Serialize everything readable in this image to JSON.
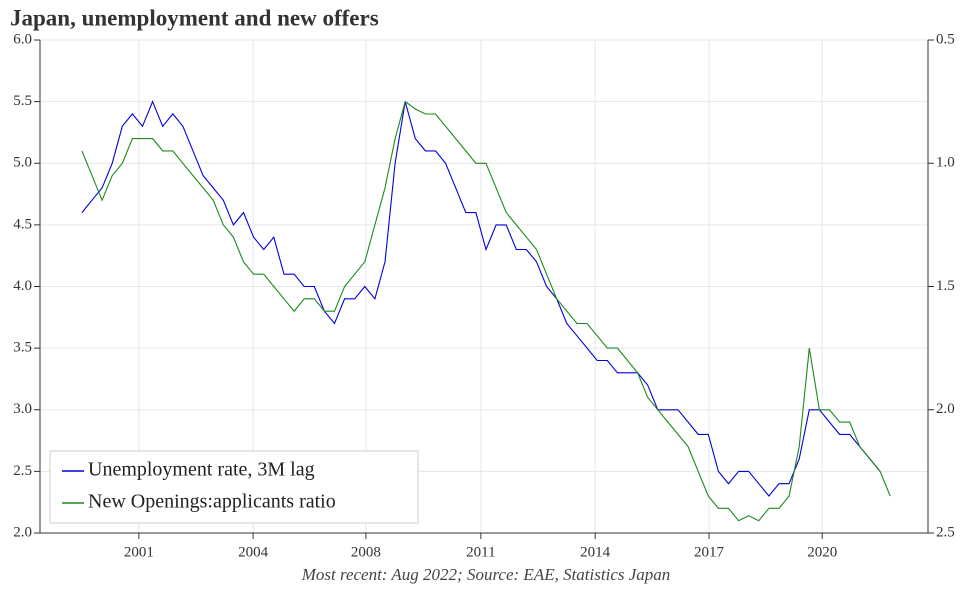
{
  "chart_data": {
    "type": "line",
    "title": "Japan, unemployment and new offers",
    "footnote": "Most recent: Aug 2022; Source: EAE, Statistics Japan",
    "x": [
      2000.6,
      2000.875,
      2001.15,
      2001.425,
      2001.7,
      2001.975,
      2002.25,
      2002.525,
      2002.8,
      2003.075,
      2003.35,
      2003.625,
      2003.9,
      2004.175,
      2004.45,
      2004.725,
      2005,
      2005.275,
      2005.55,
      2005.825,
      2006.1,
      2006.375,
      2006.65,
      2006.925,
      2007.2,
      2007.475,
      2007.75,
      2008.025,
      2008.3,
      2008.575,
      2008.85,
      2009.125,
      2009.4,
      2009.675,
      2009.95,
      2010.225,
      2010.5,
      2010.775,
      2011.05,
      2011.325,
      2011.6,
      2011.875,
      2012.15,
      2012.425,
      2012.7,
      2012.975,
      2013.25,
      2013.525,
      2013.8,
      2014.075,
      2014.35,
      2014.625,
      2014.9,
      2015.175,
      2015.45,
      2015.725,
      2016,
      2016.275,
      2016.55,
      2016.825,
      2017.1,
      2017.375,
      2017.65,
      2017.925,
      2018.2,
      2018.475,
      2018.75,
      2019.025,
      2019.3,
      2019.575,
      2019.85,
      2020.125,
      2020.4,
      2020.675,
      2020.95,
      2021.225,
      2021.5,
      2021.775,
      2022.05,
      2022.325,
      2022.6
    ],
    "series": [
      {
        "name": "Unemployment rate, 3M lag",
        "color": "#0000dd",
        "axis": "y",
        "values": [
          4.6,
          4.7,
          4.8,
          5.0,
          5.3,
          5.4,
          5.3,
          5.5,
          5.3,
          5.4,
          5.3,
          5.1,
          4.9,
          4.8,
          4.7,
          4.5,
          4.6,
          4.4,
          4.3,
          4.4,
          4.1,
          4.1,
          4.0,
          4.0,
          3.8,
          3.7,
          3.9,
          3.9,
          4.0,
          3.9,
          4.2,
          5.0,
          5.5,
          5.2,
          5.1,
          5.1,
          5.0,
          4.8,
          4.6,
          4.6,
          4.3,
          4.5,
          4.5,
          4.3,
          4.3,
          4.2,
          4.0,
          3.9,
          3.7,
          3.6,
          3.5,
          3.4,
          3.4,
          3.3,
          3.3,
          3.3,
          3.2,
          3.0,
          3.0,
          3.0,
          2.9,
          2.8,
          2.8,
          2.5,
          2.4,
          2.5,
          2.5,
          2.4,
          2.3,
          2.4,
          2.4,
          2.6,
          3.0,
          3.0,
          2.9,
          2.8,
          2.8,
          2.7,
          2.6,
          2.5,
          null
        ]
      },
      {
        "name": "New Openings:applicants ratio",
        "color": "#1a8a1a",
        "axis": "y2",
        "values": [
          0.95,
          1.05,
          1.15,
          1.05,
          1.0,
          0.9,
          0.9,
          0.9,
          0.95,
          0.95,
          1.0,
          1.05,
          1.1,
          1.15,
          1.25,
          1.3,
          1.4,
          1.45,
          1.45,
          1.5,
          1.55,
          1.6,
          1.55,
          1.55,
          1.6,
          1.6,
          1.5,
          1.45,
          1.4,
          1.25,
          1.1,
          0.9,
          0.75,
          0.78,
          0.8,
          0.8,
          0.85,
          0.9,
          0.95,
          1.0,
          1.0,
          1.1,
          1.2,
          1.25,
          1.3,
          1.35,
          1.45,
          1.55,
          1.6,
          1.65,
          1.65,
          1.7,
          1.75,
          1.75,
          1.8,
          1.85,
          1.95,
          2.0,
          2.05,
          2.1,
          2.15,
          2.25,
          2.35,
          2.4,
          2.4,
          2.45,
          2.43,
          2.45,
          2.4,
          2.4,
          2.35,
          2.15,
          1.75,
          2.0,
          2.0,
          2.05,
          2.05,
          2.15,
          2.2,
          2.25,
          2.35
        ]
      }
    ],
    "xlim": [
      1999.46,
      2023.63
    ],
    "xticks": [
      {
        "value": 2002.15,
        "label": "2001"
      },
      {
        "value": 2005.26,
        "label": "2004"
      },
      {
        "value": 2008.33,
        "label": "2008"
      },
      {
        "value": 2011.46,
        "label": "2011"
      },
      {
        "value": 2014.57,
        "label": "2014"
      },
      {
        "value": 2017.67,
        "label": "2017"
      },
      {
        "value": 2020.75,
        "label": "2020"
      }
    ],
    "ylim": [
      2,
      6
    ],
    "yticks": [
      {
        "value": 6,
        "label": "6.0"
      },
      5.5,
      {
        "value": 5,
        "label": "5.0"
      },
      4.5,
      {
        "value": 4,
        "label": "4.0"
      },
      3.5,
      {
        "value": 3,
        "label": "3.0"
      },
      2.5,
      {
        "value": 2,
        "label": "2.0"
      }
    ],
    "y2lim": [
      0.5,
      2.5
    ],
    "y2ticks": [
      0.5,
      {
        "value": 1,
        "label": "1.0"
      },
      1.5,
      {
        "value": 2,
        "label": "2.0"
      },
      2.5
    ],
    "y2_inverted": true,
    "grid": true,
    "legend": "lower-left"
  }
}
